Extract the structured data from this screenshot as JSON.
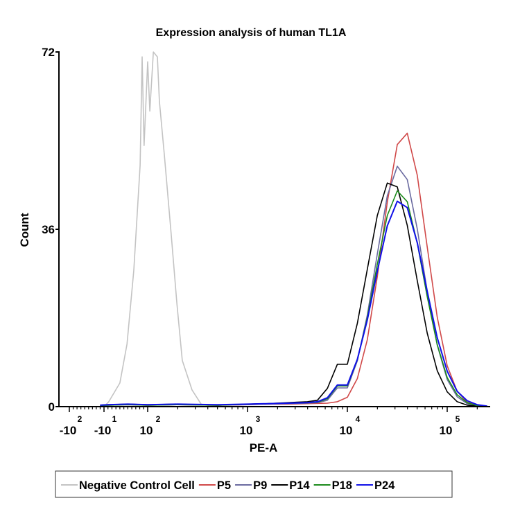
{
  "chart_data": {
    "type": "line",
    "title": "Expression analysis of human TL1A",
    "xlabel": "PE-A",
    "ylabel": "Count",
    "xscale": "biexponential",
    "ylim": [
      0,
      72
    ],
    "yticks": [
      "0",
      "36",
      "72"
    ],
    "xticks": [
      {
        "value": -100,
        "base": "-10",
        "exp": "2"
      },
      {
        "value": -10,
        "base": "-10",
        "exp": "1"
      },
      {
        "value": 100,
        "base": "10",
        "exp": "2"
      },
      {
        "value": 1000,
        "base": "10",
        "exp": "3"
      },
      {
        "value": 10000,
        "base": "10",
        "exp": "4"
      },
      {
        "value": 100000,
        "base": "10",
        "exp": "5"
      }
    ],
    "grid": false,
    "legend_position": "bottom",
    "series": [
      {
        "name": "Negative Control Cell",
        "color": "#c3c3c3",
        "x": [
          -10,
          2,
          30,
          48,
          65,
          81,
          86,
          91,
          100,
          105,
          114,
          125,
          131,
          147,
          172,
          196,
          222,
          278,
          343,
          470
        ],
        "y": [
          0,
          1,
          4.8,
          12.7,
          27.7,
          49,
          71,
          53,
          70,
          60,
          72,
          71,
          62,
          51,
          35,
          21,
          9.4,
          3.4,
          0.5,
          0
        ]
      },
      {
        "name": "P5",
        "color": "#d04848",
        "x": [
          -20,
          0,
          50,
          100,
          200,
          500,
          1000,
          1585,
          2512,
          3981,
          6310,
          7943,
          10000,
          12589,
          15849,
          19953,
          25119,
          31623,
          39811,
          50119,
          63096,
          79433,
          100000,
          125893,
          158489,
          199526,
          251189
        ],
        "y": [
          0.2,
          0.3,
          0.4,
          0.3,
          0.4,
          0.3,
          0.4,
          0.5,
          0.5,
          0.6,
          0.7,
          1.0,
          1.9,
          5.7,
          13.6,
          26.4,
          41.5,
          53.2,
          55.5,
          47.0,
          32.4,
          18.2,
          8.3,
          3.1,
          0.9,
          0.3,
          0.1
        ]
      },
      {
        "name": "P9",
        "color": "#6a6aa0",
        "x": [
          -20,
          0,
          50,
          100,
          200,
          500,
          1000,
          1585,
          2512,
          3981,
          5012,
          6310,
          7943,
          10000,
          12589,
          15849,
          19953,
          25119,
          31623,
          39811,
          50119,
          63096,
          79433,
          100000,
          125893,
          158489,
          199526,
          251189
        ],
        "y": [
          0.2,
          0.3,
          0.4,
          0.3,
          0.4,
          0.3,
          0.4,
          0.5,
          0.6,
          0.7,
          0.8,
          1.3,
          3.8,
          3.8,
          9.3,
          18.6,
          31.0,
          42.8,
          48.8,
          46.1,
          36.1,
          23.4,
          12.5,
          5.5,
          2.0,
          0.6,
          0.2,
          0.1
        ]
      },
      {
        "name": "P14",
        "color": "#000000",
        "x": [
          -20,
          0,
          50,
          100,
          200,
          500,
          1000,
          1585,
          2512,
          3162,
          3981,
          5012,
          6310,
          7943,
          10000,
          12589,
          15849,
          19953,
          25119,
          31623,
          39811,
          50119,
          63096,
          79433,
          100000,
          125893,
          158489,
          199526
        ],
        "y": [
          0.3,
          0.4,
          0.5,
          0.4,
          0.5,
          0.3,
          0.5,
          0.6,
          0.8,
          0.9,
          1.0,
          1.3,
          3.7,
          8.6,
          8.6,
          16.9,
          27.9,
          38.8,
          45.4,
          44.6,
          36.8,
          25.6,
          14.9,
          7.3,
          3.0,
          1.0,
          0.3,
          0.1
        ]
      },
      {
        "name": "P18",
        "color": "#1a8a1a",
        "x": [
          -20,
          0,
          50,
          100,
          200,
          500,
          1000,
          1585,
          2512,
          3981,
          5012,
          6310,
          7943,
          10000,
          12589,
          15849,
          19953,
          25119,
          31623,
          39811,
          50119,
          63096,
          79433,
          100000,
          125893,
          158489,
          199526,
          251189
        ],
        "y": [
          0.2,
          0.3,
          0.4,
          0.3,
          0.4,
          0.3,
          0.5,
          0.6,
          0.7,
          0.8,
          0.9,
          1.6,
          4.2,
          4.2,
          9.5,
          18.1,
          28.9,
          38.8,
          43.8,
          41.6,
          33.2,
          22.3,
          12.6,
          5.9,
          2.4,
          0.8,
          0.2,
          0.1
        ]
      },
      {
        "name": "P24",
        "color": "#1010e8",
        "x": [
          -20,
          0,
          50,
          100,
          200,
          500,
          1000,
          1585,
          2512,
          3981,
          5012,
          6310,
          7943,
          10000,
          12589,
          15849,
          19953,
          25119,
          31623,
          39811,
          50119,
          63096,
          79433,
          100000,
          125893,
          158489,
          199526,
          251189
        ],
        "y": [
          0.3,
          0.4,
          0.5,
          0.4,
          0.5,
          0.4,
          0.5,
          0.6,
          0.7,
          0.8,
          1.0,
          1.8,
          4.4,
          4.4,
          9.6,
          17.6,
          27.5,
          36.7,
          41.7,
          40.4,
          33.3,
          23.4,
          14.0,
          7.2,
          3.1,
          1.2,
          0.4,
          0.1
        ]
      }
    ]
  }
}
